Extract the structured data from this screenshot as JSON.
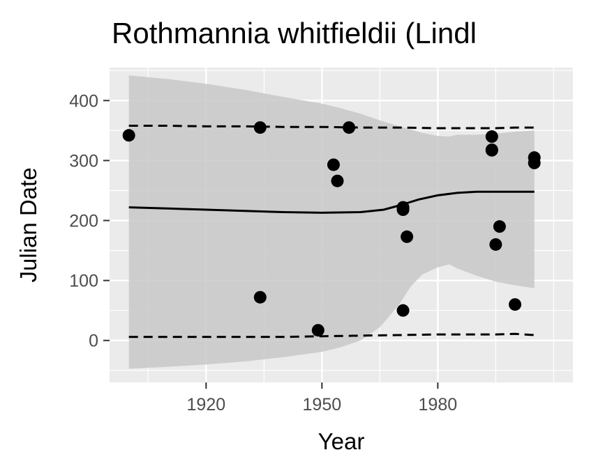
{
  "chart_data": {
    "type": "scatter",
    "title": "Rothmannia whitfieldii (Lindl",
    "xlabel": "Year",
    "ylabel": "Julian Date",
    "xlim": [
      1895,
      2015
    ],
    "ylim": [
      -70,
      455
    ],
    "x_ticks": [
      1920,
      1950,
      1980
    ],
    "y_ticks": [
      0,
      100,
      200,
      300,
      400
    ],
    "grid": true,
    "colors": {
      "panel": "#ebebeb",
      "grid": "#ffffff",
      "ribbon": "#c8c8c8",
      "line": "#000000",
      "points": "#000000",
      "tick_text": "#4d4d4d"
    },
    "points": [
      {
        "x": 1900,
        "y": 342
      },
      {
        "x": 1934,
        "y": 355
      },
      {
        "x": 1934,
        "y": 72
      },
      {
        "x": 1949,
        "y": 17
      },
      {
        "x": 1953,
        "y": 293
      },
      {
        "x": 1954,
        "y": 266
      },
      {
        "x": 1957,
        "y": 355
      },
      {
        "x": 1971,
        "y": 222
      },
      {
        "x": 1971,
        "y": 218
      },
      {
        "x": 1971,
        "y": 50
      },
      {
        "x": 1972,
        "y": 173
      },
      {
        "x": 1994,
        "y": 340
      },
      {
        "x": 1994,
        "y": 317
      },
      {
        "x": 1994,
        "y": 318
      },
      {
        "x": 1995,
        "y": 160
      },
      {
        "x": 1996,
        "y": 190
      },
      {
        "x": 2000,
        "y": 60
      },
      {
        "x": 2005,
        "y": 305
      },
      {
        "x": 2005,
        "y": 296
      }
    ],
    "fit_line": {
      "x": [
        1900,
        1910,
        1920,
        1930,
        1940,
        1950,
        1960,
        1966,
        1970,
        1975,
        1980,
        1985,
        1990,
        1995,
        2000,
        2005
      ],
      "y": [
        222,
        220,
        218,
        216,
        214,
        213,
        214,
        218,
        225,
        235,
        242,
        246,
        248,
        248,
        248,
        248
      ]
    },
    "ribbon": {
      "x": [
        1900,
        1910,
        1920,
        1930,
        1940,
        1950,
        1955,
        1960,
        1965,
        1970,
        1973,
        1976,
        1980,
        1983,
        1985,
        1990,
        1995,
        2000,
        2005
      ],
      "upper": [
        442,
        436,
        428,
        418,
        406,
        395,
        387,
        378,
        367,
        357,
        352,
        346,
        341,
        340,
        343,
        343,
        345,
        348,
        350
      ],
      "lower": [
        -47,
        -44,
        -40,
        -35,
        -28,
        -19,
        -11,
        0,
        22,
        60,
        90,
        110,
        122,
        127,
        120,
        108,
        98,
        92,
        87
      ]
    },
    "quantile_upper": {
      "x": [
        1900,
        1910,
        1920,
        1930,
        1940,
        1950,
        1960,
        1970,
        1980,
        1990,
        1995,
        2000,
        2005
      ],
      "y": [
        358,
        358,
        357,
        357,
        356,
        356,
        355,
        355,
        354,
        354,
        354,
        355,
        355
      ]
    },
    "quantile_lower": {
      "x": [
        1900,
        1910,
        1920,
        1930,
        1940,
        1950,
        1960,
        1970,
        1980,
        1990,
        1995,
        2000,
        2005
      ],
      "y": [
        6,
        6,
        6,
        6,
        6,
        7,
        8,
        9,
        10,
        10,
        10,
        11,
        9
      ]
    }
  }
}
